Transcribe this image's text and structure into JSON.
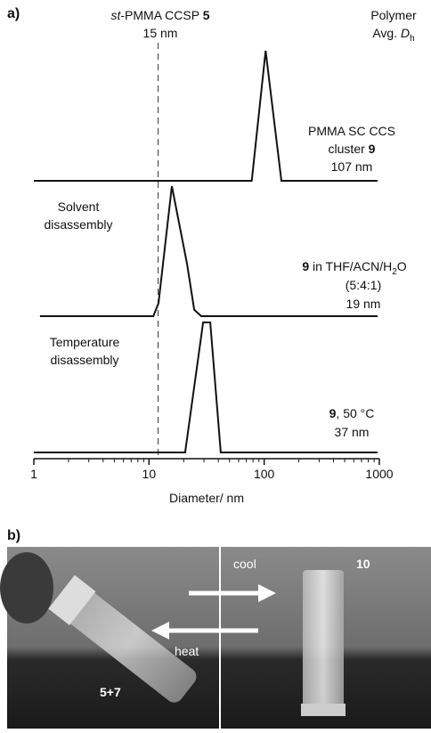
{
  "chart_data": {
    "type": "line",
    "x_log": true,
    "xlim": [
      1,
      1000
    ],
    "xticks": [
      1,
      10,
      100,
      1000
    ],
    "xlabel": "Diameter/ nm",
    "panel_a": "a)",
    "panel_b": "b)",
    "color": "#111111",
    "series": [
      {
        "x": [
          1,
          78,
          103,
          141,
          966
        ],
        "values": [
          0,
          0,
          1,
          0,
          0
        ]
      },
      {
        "x": [
          1.13,
          10.9,
          12.1,
          15.8,
          21.4,
          24.7,
          28.4,
          966
        ],
        "values": [
          0,
          0,
          0.1,
          1,
          0.4,
          0.05,
          0,
          0
        ]
      },
      {
        "x": [
          1,
          20.6,
          29.5,
          34,
          42,
          966
        ],
        "values": [
          0,
          0,
          1,
          1,
          0,
          0
        ]
      }
    ],
    "reference_x": 12,
    "reference_label": {
      "prefix": "st",
      "text": "-PMMA CCSP ",
      "number": "5",
      "size": "15 nm"
    },
    "header_label": {
      "line1": "Polymer",
      "line2": "Avg. ",
      "symbol": "D",
      "sub": "h"
    },
    "annotations": {
      "cluster": {
        "line1": "PMMA SC CCS",
        "line2": "cluster ",
        "number": "9",
        "size": "107 nm"
      },
      "solvent": {
        "line1": "Solvent",
        "line2": "disassembly"
      },
      "solvent_sample": {
        "number": "9",
        "text": " in THF/ACN/H",
        "sub": "2",
        "tail": "O",
        "ratio": "(5:4:1)",
        "size": "19 nm"
      },
      "temperature": {
        "line1": "Temperature",
        "line2": "disassembly"
      },
      "temperature_sample": {
        "number": "9",
        "text": ", 50 °C",
        "size": "37 nm"
      }
    },
    "photo": {
      "cool": "cool",
      "heat": "heat",
      "right_vial": "10",
      "left_vial": "5+7"
    }
  }
}
